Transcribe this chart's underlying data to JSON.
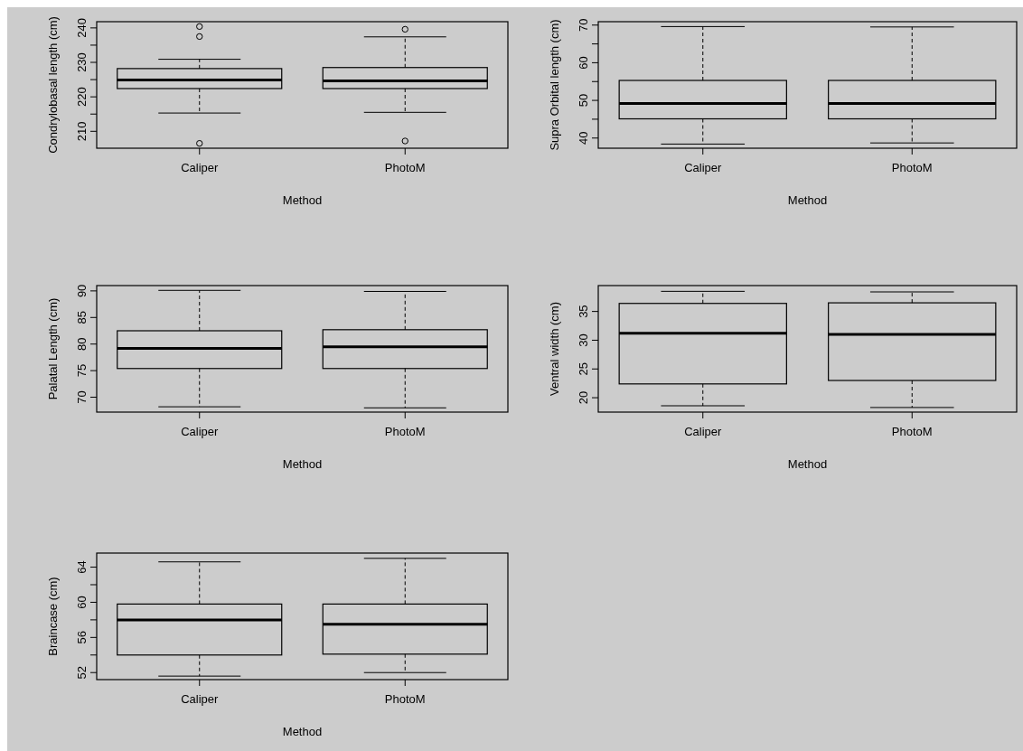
{
  "chart_data": [
    {
      "type": "box",
      "ylabel": "Condrylobasal length (cm)",
      "xlabel": "Method",
      "categories": [
        "Caliper",
        "PhotoM"
      ],
      "ylim": [
        205.1,
        241.8
      ],
      "yticks": [
        210,
        {
          "value": 215,
          "label": null
        },
        220,
        {
          "value": 225,
          "label": null
        },
        230,
        {
          "value": 235,
          "label": null
        },
        240
      ],
      "boxes": [
        {
          "low": 215.3,
          "q1": 222.4,
          "median": 224.9,
          "q3": 228.2,
          "high": 230.9,
          "outliers": [
            240.4,
            237.5,
            206.5
          ]
        },
        {
          "low": 215.5,
          "q1": 222.4,
          "median": 224.6,
          "q3": 228.5,
          "high": 237.4,
          "outliers": [
            239.6,
            207.2
          ]
        }
      ]
    },
    {
      "type": "box",
      "ylabel": "Supra Orbital length (cm)",
      "xlabel": "Method",
      "categories": [
        "Caliper",
        "PhotoM"
      ],
      "ylim": [
        37.3,
        70.9
      ],
      "yticks": [
        40,
        {
          "value": 45,
          "label": null
        },
        50,
        {
          "value": 55,
          "label": null
        },
        60,
        {
          "value": 65,
          "label": null
        },
        70
      ],
      "boxes": [
        {
          "low": 38.4,
          "q1": 45.1,
          "median": 49.2,
          "q3": 55.3,
          "high": 69.6
        },
        {
          "low": 38.7,
          "q1": 45.1,
          "median": 49.2,
          "q3": 55.3,
          "high": 69.5
        }
      ]
    },
    {
      "type": "box",
      "ylabel": "Palatal Length (cm)",
      "xlabel": "Method",
      "categories": [
        "Caliper",
        "PhotoM"
      ],
      "ylim": [
        67.2,
        91.0
      ],
      "yticks": [
        70,
        75,
        80,
        85,
        90
      ],
      "boxes": [
        {
          "low": 68.2,
          "q1": 75.4,
          "median": 79.2,
          "q3": 82.5,
          "high": 90.1
        },
        {
          "low": 68.0,
          "q1": 75.4,
          "median": 79.5,
          "q3": 82.7,
          "high": 89.9
        }
      ]
    },
    {
      "type": "box",
      "ylabel": "Ventral width (cm)",
      "xlabel": "Method",
      "categories": [
        "Caliper",
        "PhotoM"
      ],
      "ylim": [
        17.5,
        39.5
      ],
      "yticks": [
        20,
        25,
        30,
        35
      ],
      "boxes": [
        {
          "low": 18.6,
          "q1": 22.4,
          "median": 31.2,
          "q3": 36.4,
          "high": 38.5
        },
        {
          "low": 18.3,
          "q1": 23.0,
          "median": 31.0,
          "q3": 36.5,
          "high": 38.4
        }
      ]
    },
    {
      "type": "box",
      "ylabel": "Braincase (cm)",
      "xlabel": "Method",
      "categories": [
        "Caliper",
        "PhotoM"
      ],
      "ylim": [
        51.2,
        65.6
      ],
      "yticks": [
        52,
        {
          "value": 54,
          "label": null
        },
        56,
        {
          "value": 58,
          "label": null
        },
        60,
        {
          "value": 62,
          "label": null
        },
        64
      ],
      "boxes": [
        {
          "low": 51.6,
          "q1": 54.0,
          "median": 58.0,
          "q3": 59.8,
          "high": 64.6
        },
        {
          "low": 52.0,
          "q1": 54.1,
          "median": 57.5,
          "q3": 59.8,
          "high": 65.0
        }
      ]
    }
  ]
}
